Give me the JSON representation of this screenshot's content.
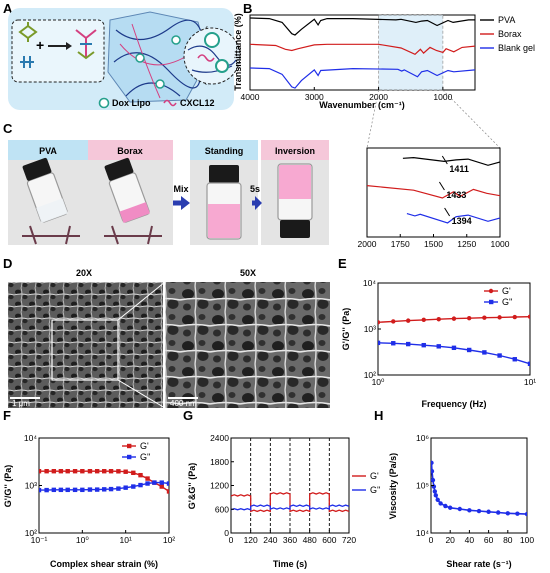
{
  "figure": {
    "panel_labels": [
      "A",
      "B",
      "C",
      "D",
      "E",
      "F",
      "G",
      "H"
    ],
    "colors": {
      "black": "#000000",
      "red": "#d11c1c",
      "blue": "#1f2ee8",
      "sky": "#bfe3f4",
      "pink": "#f5c7d9",
      "hydrogel": "#f7a9d1"
    }
  },
  "panelA": {
    "legend": [
      "Dox Lipo",
      "CXCL12"
    ],
    "icons": [
      "plus-icon",
      "arrow-right-icon",
      "liposome-icon",
      "chemokine-icon"
    ]
  },
  "panelC": {
    "labels": [
      "PVA",
      "Borax",
      "Standing",
      "Inversion"
    ],
    "arrows": [
      "Mix",
      "5s"
    ]
  },
  "panelD": {
    "titles": [
      "20X",
      "50X"
    ],
    "scale_bars": [
      "1 μm",
      "400 nm"
    ]
  },
  "chart_data": [
    {
      "panel": "B",
      "type": "line",
      "xlabel": "Wavenumber (cm⁻¹)",
      "ylabel": "Transmittance (%)",
      "xlim": [
        4000,
        500
      ],
      "xticks": [
        4000,
        3000,
        2000,
        1000
      ],
      "y_ticks_shown": false,
      "legend_position": "right",
      "series": [
        {
          "name": "PVA",
          "color": "#000000",
          "x": [
            4000,
            3700,
            3500,
            3350,
            3300,
            3200,
            3000,
            2940,
            2900,
            2800,
            2400,
            1730,
            1650,
            1420,
            1330,
            1240,
            1090,
            920,
            840,
            600,
            500
          ],
          "y": [
            100,
            99,
            93,
            75,
            73,
            82,
            98,
            89,
            96,
            99,
            99,
            97,
            98,
            93,
            95,
            96,
            88,
            96,
            93,
            97,
            97
          ]
        },
        {
          "name": "Borax",
          "color": "#d11c1c",
          "x": [
            4000,
            3600,
            3450,
            3350,
            3250,
            3000,
            2800,
            2400,
            2000,
            1650,
            1433,
            1350,
            1300,
            1200,
            1100,
            1000,
            950,
            830,
            700,
            500
          ],
          "y": [
            98,
            96,
            90,
            88,
            91,
            97,
            98,
            98,
            98,
            92,
            82,
            90,
            84,
            93,
            88,
            85,
            91,
            86,
            93,
            95
          ]
        },
        {
          "name": "Blank gel",
          "color": "#1f2ee8",
          "x": [
            4000,
            3700,
            3500,
            3350,
            3300,
            3200,
            3000,
            2940,
            2900,
            2400,
            1700,
            1640,
            1600,
            1394,
            1330,
            1240,
            1090,
            920,
            830,
            500
          ],
          "y": [
            100,
            99,
            90,
            70,
            68,
            80,
            97,
            88,
            96,
            99,
            98,
            95,
            97,
            86,
            94,
            96,
            88,
            96,
            94,
            97
          ]
        }
      ],
      "inset": {
        "xlim": [
          2000,
          1000
        ],
        "xticks": [
          2000,
          1750,
          1500,
          1250,
          1000
        ],
        "annotations": [
          {
            "series": "PVA",
            "x": 1411,
            "label": "1411"
          },
          {
            "series": "Borax",
            "x": 1433,
            "label": "1433"
          },
          {
            "series": "Blank gel",
            "x": 1394,
            "label": "1394"
          }
        ]
      }
    },
    {
      "panel": "E",
      "type": "line",
      "xlabel": "Frequency (Hz)",
      "ylabel": "G'/G'' (Pa)",
      "xscale": "log",
      "yscale": "log",
      "xlim": [
        1,
        10
      ],
      "ylim": [
        100,
        10000
      ],
      "xticks": [
        "10⁰",
        "10¹"
      ],
      "yticks": [
        "10²",
        "10³",
        "10⁴"
      ],
      "legend_position": "top-right",
      "series": [
        {
          "name": "G'",
          "color": "#d11c1c",
          "x": [
            1,
            1.26,
            1.58,
            2,
            2.51,
            3.16,
            3.98,
            5.01,
            6.31,
            7.94,
            10
          ],
          "y": [
            1400,
            1460,
            1520,
            1580,
            1630,
            1680,
            1720,
            1760,
            1790,
            1820,
            1850
          ]
        },
        {
          "name": "G''",
          "color": "#1f2ee8",
          "x": [
            1,
            1.26,
            1.58,
            2,
            2.51,
            3.16,
            3.98,
            5.01,
            6.31,
            7.94,
            10
          ],
          "y": [
            500,
            490,
            470,
            445,
            420,
            390,
            350,
            310,
            265,
            220,
            175
          ]
        }
      ]
    },
    {
      "panel": "F",
      "type": "line",
      "xlabel": "Complex shear strain (%)",
      "ylabel": "G'/G'' (Pa)",
      "xscale": "log",
      "yscale": "log",
      "xlim": [
        0.1,
        100
      ],
      "ylim": [
        100,
        10000
      ],
      "xticks": [
        "10⁻¹",
        "10⁰",
        "10¹",
        "10²"
      ],
      "yticks": [
        "10²",
        "10³",
        "10⁴"
      ],
      "legend_position": "top-right",
      "series": [
        {
          "name": "G'",
          "color": "#d11c1c",
          "x": [
            0.1,
            0.15,
            0.22,
            0.32,
            0.46,
            0.68,
            1,
            1.5,
            2.2,
            3.2,
            4.6,
            6.8,
            10,
            15,
            22,
            32,
            46,
            68,
            100
          ],
          "y": [
            2000,
            2000,
            2000,
            2000,
            2000,
            2000,
            2000,
            2000,
            2000,
            2000,
            2000,
            1990,
            1950,
            1850,
            1650,
            1400,
            1150,
            950,
            750
          ]
        },
        {
          "name": "G''",
          "color": "#1f2ee8",
          "x": [
            0.1,
            0.15,
            0.22,
            0.32,
            0.46,
            0.68,
            1,
            1.5,
            2.2,
            3.2,
            4.6,
            6.8,
            10,
            15,
            22,
            32,
            46,
            68,
            100
          ],
          "y": [
            800,
            800,
            810,
            810,
            810,
            810,
            810,
            820,
            820,
            830,
            840,
            860,
            900,
            950,
            1020,
            1100,
            1150,
            1150,
            1100
          ]
        }
      ]
    },
    {
      "panel": "G",
      "type": "line",
      "xlabel": "Time (s)",
      "ylabel": "G'&G'' (Pa)",
      "xlim": [
        0,
        720
      ],
      "ylim": [
        0,
        2400
      ],
      "xticks": [
        0,
        120,
        240,
        360,
        480,
        600,
        720
      ],
      "yticks": [
        0,
        600,
        1200,
        1800,
        2400
      ],
      "step_boundaries": [
        120,
        240,
        360,
        480,
        600
      ],
      "legend_position": "right",
      "series": [
        {
          "name": "G'",
          "color": "#d11c1c",
          "segments": [
            [
              0,
              120,
              950
            ],
            [
              120,
              240,
              560
            ],
            [
              240,
              360,
              1000
            ],
            [
              360,
              480,
              560
            ],
            [
              480,
              600,
              1000
            ],
            [
              600,
              720,
              560
            ]
          ]
        },
        {
          "name": "G''",
          "color": "#1f2ee8",
          "segments": [
            [
              0,
              120,
              600
            ],
            [
              120,
              240,
              690
            ],
            [
              240,
              360,
              620
            ],
            [
              360,
              480,
              690
            ],
            [
              480,
              600,
              620
            ],
            [
              600,
              720,
              690
            ]
          ]
        }
      ]
    },
    {
      "panel": "H",
      "type": "line",
      "xlabel": "Shear rate (s⁻¹)",
      "ylabel": "Viscosity (Pa/s)",
      "yscale": "log",
      "xlim": [
        0,
        100
      ],
      "ylim": [
        10000,
        1000000
      ],
      "xticks": [
        0,
        20,
        40,
        60,
        80,
        100
      ],
      "yticks": [
        "10⁴",
        "10⁵",
        "10⁶"
      ],
      "series": [
        {
          "name": "Viscosity",
          "color": "#1f2ee8",
          "x": [
            0.5,
            1,
            2,
            3,
            4,
            5,
            7,
            10,
            15,
            20,
            30,
            40,
            50,
            60,
            70,
            80,
            90,
            100
          ],
          "y": [
            300000,
            200000,
            130000,
            95000,
            75000,
            62000,
            50000,
            42000,
            37000,
            34000,
            32000,
            30000,
            29000,
            28000,
            27000,
            26000,
            25500,
            25000
          ]
        }
      ]
    }
  ]
}
